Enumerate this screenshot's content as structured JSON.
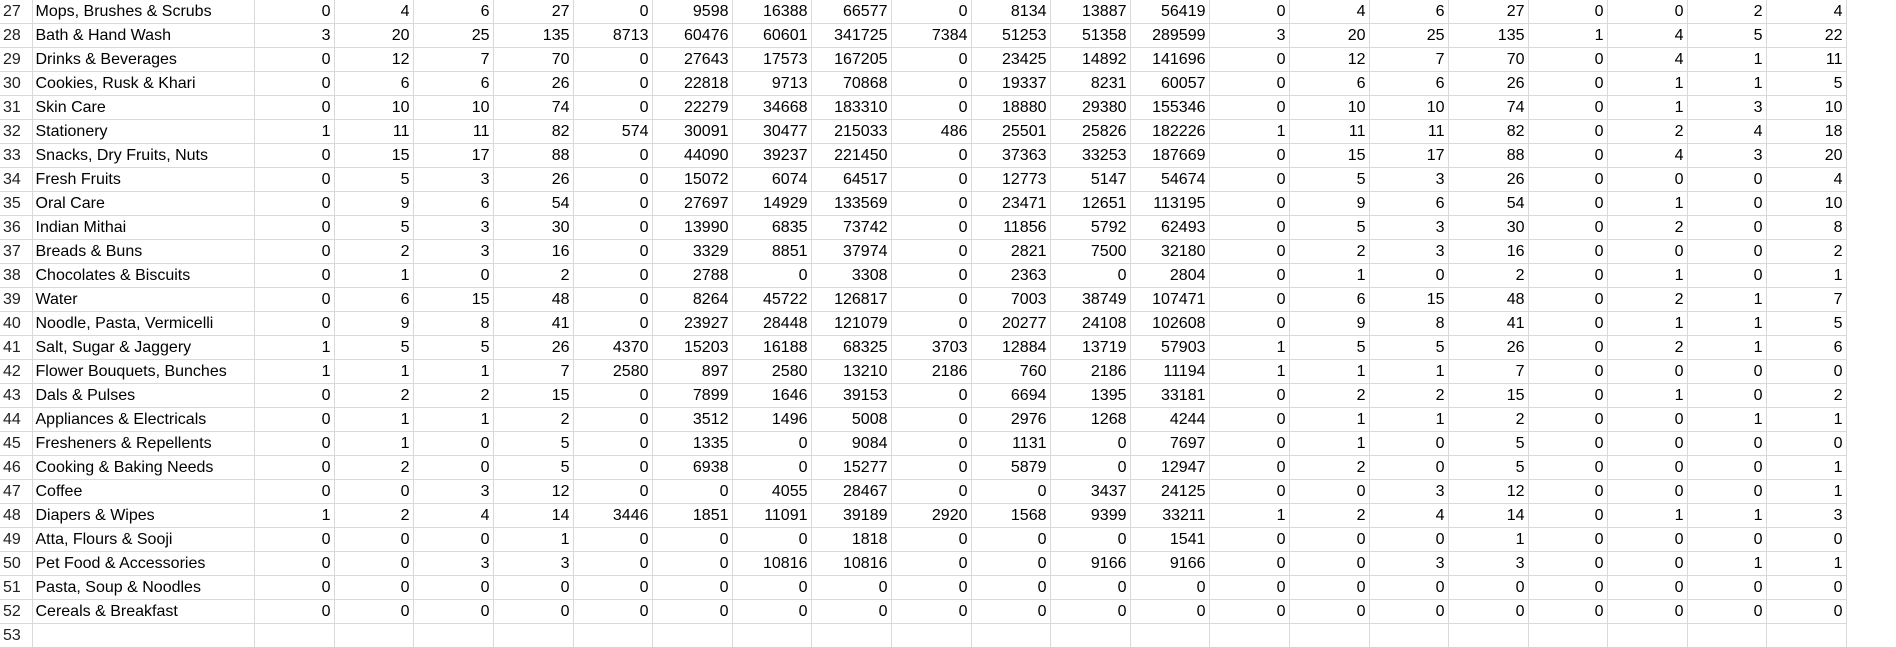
{
  "rows": [
    {
      "row": "27",
      "category": "Mops, Brushes & Scrubs",
      "values": [
        "0",
        "4",
        "6",
        "27",
        "0",
        "9598",
        "16388",
        "66577",
        "0",
        "8134",
        "13887",
        "56419",
        "0",
        "4",
        "6",
        "27",
        "0",
        "0",
        "2",
        "4"
      ]
    },
    {
      "row": "28",
      "category": "Bath & Hand Wash",
      "values": [
        "3",
        "20",
        "25",
        "135",
        "8713",
        "60476",
        "60601",
        "341725",
        "7384",
        "51253",
        "51358",
        "289599",
        "3",
        "20",
        "25",
        "135",
        "1",
        "4",
        "5",
        "22"
      ]
    },
    {
      "row": "29",
      "category": "Drinks & Beverages",
      "values": [
        "0",
        "12",
        "7",
        "70",
        "0",
        "27643",
        "17573",
        "167205",
        "0",
        "23425",
        "14892",
        "141696",
        "0",
        "12",
        "7",
        "70",
        "0",
        "4",
        "1",
        "11"
      ]
    },
    {
      "row": "30",
      "category": "Cookies, Rusk & Khari",
      "values": [
        "0",
        "6",
        "6",
        "26",
        "0",
        "22818",
        "9713",
        "70868",
        "0",
        "19337",
        "8231",
        "60057",
        "0",
        "6",
        "6",
        "26",
        "0",
        "1",
        "1",
        "5"
      ]
    },
    {
      "row": "31",
      "category": "Skin Care",
      "values": [
        "0",
        "10",
        "10",
        "74",
        "0",
        "22279",
        "34668",
        "183310",
        "0",
        "18880",
        "29380",
        "155346",
        "0",
        "10",
        "10",
        "74",
        "0",
        "1",
        "3",
        "10"
      ]
    },
    {
      "row": "32",
      "category": "Stationery",
      "values": [
        "1",
        "11",
        "11",
        "82",
        "574",
        "30091",
        "30477",
        "215033",
        "486",
        "25501",
        "25826",
        "182226",
        "1",
        "11",
        "11",
        "82",
        "0",
        "2",
        "4",
        "18"
      ]
    },
    {
      "row": "33",
      "category": "Snacks, Dry Fruits, Nuts",
      "values": [
        "0",
        "15",
        "17",
        "88",
        "0",
        "44090",
        "39237",
        "221450",
        "0",
        "37363",
        "33253",
        "187669",
        "0",
        "15",
        "17",
        "88",
        "0",
        "4",
        "3",
        "20"
      ]
    },
    {
      "row": "34",
      "category": "Fresh Fruits",
      "values": [
        "0",
        "5",
        "3",
        "26",
        "0",
        "15072",
        "6074",
        "64517",
        "0",
        "12773",
        "5147",
        "54674",
        "0",
        "5",
        "3",
        "26",
        "0",
        "0",
        "0",
        "4"
      ]
    },
    {
      "row": "35",
      "category": "Oral Care",
      "values": [
        "0",
        "9",
        "6",
        "54",
        "0",
        "27697",
        "14929",
        "133569",
        "0",
        "23471",
        "12651",
        "113195",
        "0",
        "9",
        "6",
        "54",
        "0",
        "1",
        "0",
        "10"
      ]
    },
    {
      "row": "36",
      "category": "Indian Mithai",
      "values": [
        "0",
        "5",
        "3",
        "30",
        "0",
        "13990",
        "6835",
        "73742",
        "0",
        "11856",
        "5792",
        "62493",
        "0",
        "5",
        "3",
        "30",
        "0",
        "2",
        "0",
        "8"
      ]
    },
    {
      "row": "37",
      "category": "Breads & Buns",
      "values": [
        "0",
        "2",
        "3",
        "16",
        "0",
        "3329",
        "8851",
        "37974",
        "0",
        "2821",
        "7500",
        "32180",
        "0",
        "2",
        "3",
        "16",
        "0",
        "0",
        "0",
        "2"
      ]
    },
    {
      "row": "38",
      "category": "Chocolates & Biscuits",
      "values": [
        "0",
        "1",
        "0",
        "2",
        "0",
        "2788",
        "0",
        "3308",
        "0",
        "2363",
        "0",
        "2804",
        "0",
        "1",
        "0",
        "2",
        "0",
        "1",
        "0",
        "1"
      ]
    },
    {
      "row": "39",
      "category": "Water",
      "values": [
        "0",
        "6",
        "15",
        "48",
        "0",
        "8264",
        "45722",
        "126817",
        "0",
        "7003",
        "38749",
        "107471",
        "0",
        "6",
        "15",
        "48",
        "0",
        "2",
        "1",
        "7"
      ]
    },
    {
      "row": "40",
      "category": "Noodle, Pasta, Vermicelli",
      "values": [
        "0",
        "9",
        "8",
        "41",
        "0",
        "23927",
        "28448",
        "121079",
        "0",
        "20277",
        "24108",
        "102608",
        "0",
        "9",
        "8",
        "41",
        "0",
        "1",
        "1",
        "5"
      ]
    },
    {
      "row": "41",
      "category": "Salt, Sugar & Jaggery",
      "values": [
        "1",
        "5",
        "5",
        "26",
        "4370",
        "15203",
        "16188",
        "68325",
        "3703",
        "12884",
        "13719",
        "57903",
        "1",
        "5",
        "5",
        "26",
        "0",
        "2",
        "1",
        "6"
      ]
    },
    {
      "row": "42",
      "category": "Flower Bouquets, Bunches",
      "values": [
        "1",
        "1",
        "1",
        "7",
        "2580",
        "897",
        "2580",
        "13210",
        "2186",
        "760",
        "2186",
        "11194",
        "1",
        "1",
        "1",
        "7",
        "0",
        "0",
        "0",
        "0"
      ]
    },
    {
      "row": "43",
      "category": "Dals & Pulses",
      "values": [
        "0",
        "2",
        "2",
        "15",
        "0",
        "7899",
        "1646",
        "39153",
        "0",
        "6694",
        "1395",
        "33181",
        "0",
        "2",
        "2",
        "15",
        "0",
        "1",
        "0",
        "2"
      ]
    },
    {
      "row": "44",
      "category": "Appliances & Electricals",
      "values": [
        "0",
        "1",
        "1",
        "2",
        "0",
        "3512",
        "1496",
        "5008",
        "0",
        "2976",
        "1268",
        "4244",
        "0",
        "1",
        "1",
        "2",
        "0",
        "0",
        "1",
        "1"
      ]
    },
    {
      "row": "45",
      "category": "Fresheners & Repellents",
      "values": [
        "0",
        "1",
        "0",
        "5",
        "0",
        "1335",
        "0",
        "9084",
        "0",
        "1131",
        "0",
        "7697",
        "0",
        "1",
        "0",
        "5",
        "0",
        "0",
        "0",
        "0"
      ]
    },
    {
      "row": "46",
      "category": "Cooking & Baking Needs",
      "values": [
        "0",
        "2",
        "0",
        "5",
        "0",
        "6938",
        "0",
        "15277",
        "0",
        "5879",
        "0",
        "12947",
        "0",
        "2",
        "0",
        "5",
        "0",
        "0",
        "0",
        "1"
      ]
    },
    {
      "row": "47",
      "category": "Coffee",
      "values": [
        "0",
        "0",
        "3",
        "12",
        "0",
        "0",
        "4055",
        "28467",
        "0",
        "0",
        "3437",
        "24125",
        "0",
        "0",
        "3",
        "12",
        "0",
        "0",
        "0",
        "1"
      ]
    },
    {
      "row": "48",
      "category": "Diapers & Wipes",
      "values": [
        "1",
        "2",
        "4",
        "14",
        "3446",
        "1851",
        "11091",
        "39189",
        "2920",
        "1568",
        "9399",
        "33211",
        "1",
        "2",
        "4",
        "14",
        "0",
        "1",
        "1",
        "3"
      ]
    },
    {
      "row": "49",
      "category": "Atta, Flours & Sooji",
      "values": [
        "0",
        "0",
        "0",
        "1",
        "0",
        "0",
        "0",
        "1818",
        "0",
        "0",
        "0",
        "1541",
        "0",
        "0",
        "0",
        "1",
        "0",
        "0",
        "0",
        "0"
      ]
    },
    {
      "row": "50",
      "category": "Pet Food & Accessories",
      "values": [
        "0",
        "0",
        "3",
        "3",
        "0",
        "0",
        "10816",
        "10816",
        "0",
        "0",
        "9166",
        "9166",
        "0",
        "0",
        "3",
        "3",
        "0",
        "0",
        "1",
        "1"
      ]
    },
    {
      "row": "51",
      "category": "Pasta, Soup & Noodles",
      "values": [
        "0",
        "0",
        "0",
        "0",
        "0",
        "0",
        "0",
        "0",
        "0",
        "0",
        "0",
        "0",
        "0",
        "0",
        "0",
        "0",
        "0",
        "0",
        "0",
        "0"
      ]
    },
    {
      "row": "52",
      "category": "Cereals & Breakfast",
      "values": [
        "0",
        "0",
        "0",
        "0",
        "0",
        "0",
        "0",
        "0",
        "0",
        "0",
        "0",
        "0",
        "0",
        "0",
        "0",
        "0",
        "0",
        "0",
        "0",
        "0"
      ]
    }
  ],
  "partial_row": {
    "row": "53"
  }
}
